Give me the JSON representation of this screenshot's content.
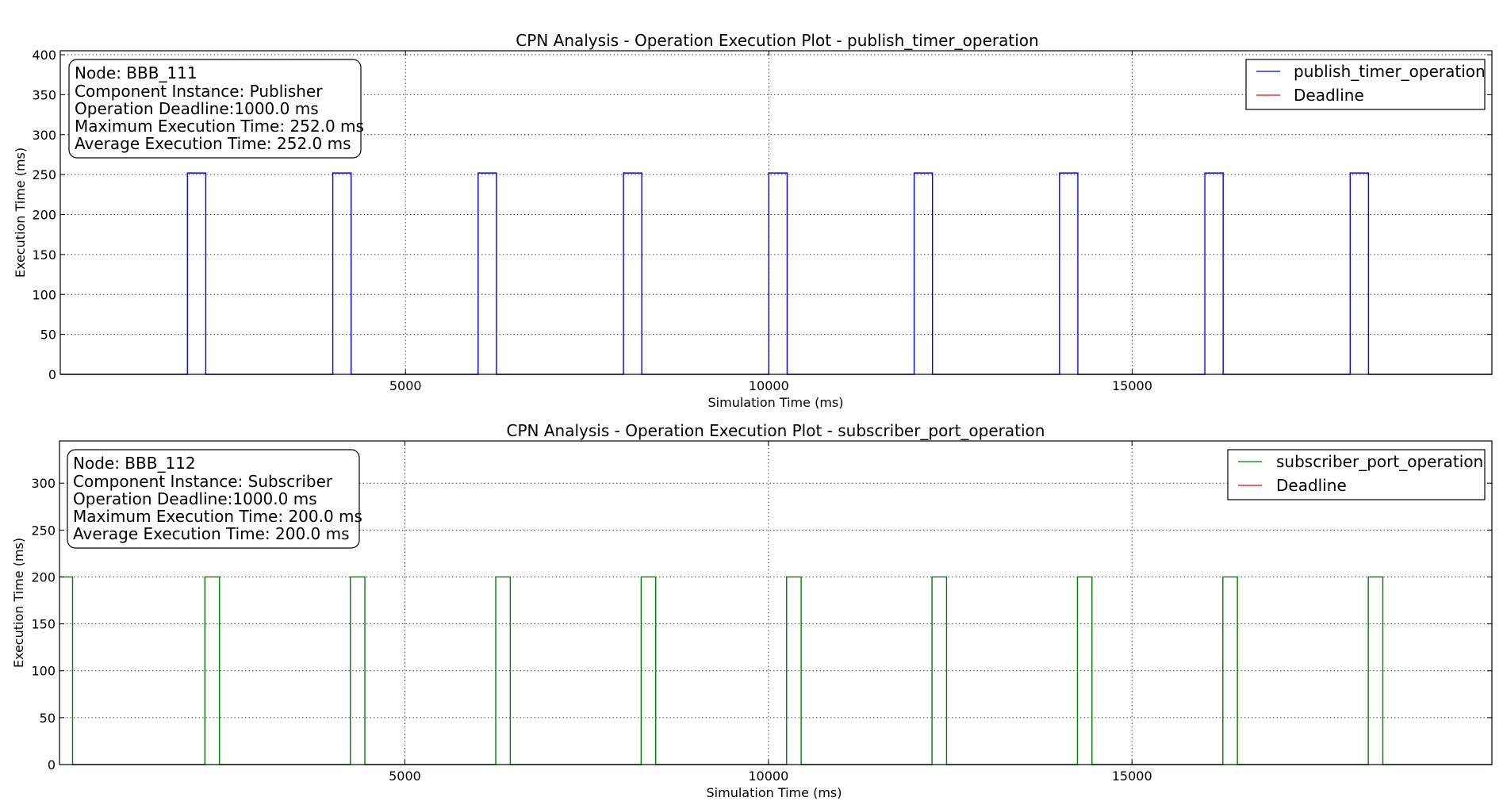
{
  "colors": {
    "series": "#0000ff",
    "series_2": "#008000",
    "deadline": "#ff0000",
    "axis": "#000000"
  },
  "chart_data": [
    {
      "type": "line",
      "title": "CPN Analysis - Operation Execution Plot - publish_timer_operation",
      "xlabel": "Simulation Time (ms)",
      "ylabel": "Execution Time (ms)",
      "xlim": [
        250,
        19950
      ],
      "ylim": [
        0,
        405
      ],
      "xticks": [
        5000,
        10000,
        15000
      ],
      "yticks": [
        0,
        50,
        100,
        150,
        200,
        250,
        300,
        350,
        400
      ],
      "grid": true,
      "legend_placement": "upper-right",
      "legend": [
        "publish_timer_operation",
        "Deadline"
      ],
      "info_box": [
        "Node: BBB_111",
        "Component Instance: Publisher",
        "Operation Deadline:1000.0 ms",
        "Maximum Execution Time: 252.0 ms",
        "Average Execution Time: 252.0 ms"
      ],
      "series": [
        {
          "name": "publish_timer_operation",
          "color": "#0000ff",
          "pulses": [
            {
              "start": 2000,
              "end": 2252,
              "value": 252
            },
            {
              "start": 4000,
              "end": 4252,
              "value": 252
            },
            {
              "start": 6000,
              "end": 6252,
              "value": 252
            },
            {
              "start": 8000,
              "end": 8252,
              "value": 252
            },
            {
              "start": 10000,
              "end": 10252,
              "value": 252
            },
            {
              "start": 12000,
              "end": 12252,
              "value": 252
            },
            {
              "start": 14000,
              "end": 14252,
              "value": 252
            },
            {
              "start": 16000,
              "end": 16252,
              "value": 252
            },
            {
              "start": 18000,
              "end": 18252,
              "value": 252
            }
          ]
        },
        {
          "name": "Deadline",
          "color": "#ff0000",
          "value": 1000
        }
      ]
    },
    {
      "type": "line",
      "title": "CPN Analysis - Operation Execution Plot - subscriber_port_operation",
      "xlabel": "Simulation Time (ms)",
      "ylabel": "Execution Time (ms)",
      "xlim": [
        250,
        19950
      ],
      "ylim": [
        0,
        345
      ],
      "xticks": [
        5000,
        10000,
        15000
      ],
      "yticks": [
        0,
        50,
        100,
        150,
        200,
        250,
        300
      ],
      "grid": true,
      "legend_placement": "upper-right",
      "legend": [
        "subscriber_port_operation",
        "Deadline"
      ],
      "info_box": [
        "Node: BBB_112",
        "Component Instance: Subscriber",
        "Operation Deadline:1000.0 ms",
        "Maximum Execution Time: 200.0 ms",
        "Average Execution Time: 200.0 ms"
      ],
      "series": [
        {
          "name": "subscriber_port_operation",
          "color": "#008000",
          "pulses": [
            {
              "start": 250,
              "end": 430,
              "value": 200
            },
            {
              "start": 2250,
              "end": 2450,
              "value": 200
            },
            {
              "start": 4250,
              "end": 4450,
              "value": 200
            },
            {
              "start": 6250,
              "end": 6450,
              "value": 200
            },
            {
              "start": 8250,
              "end": 8450,
              "value": 200
            },
            {
              "start": 10250,
              "end": 10450,
              "value": 200
            },
            {
              "start": 12250,
              "end": 12450,
              "value": 200
            },
            {
              "start": 14250,
              "end": 14450,
              "value": 200
            },
            {
              "start": 16250,
              "end": 16450,
              "value": 200
            },
            {
              "start": 18250,
              "end": 18450,
              "value": 200
            }
          ]
        },
        {
          "name": "Deadline",
          "color": "#ff0000",
          "value": 1000
        }
      ]
    }
  ]
}
